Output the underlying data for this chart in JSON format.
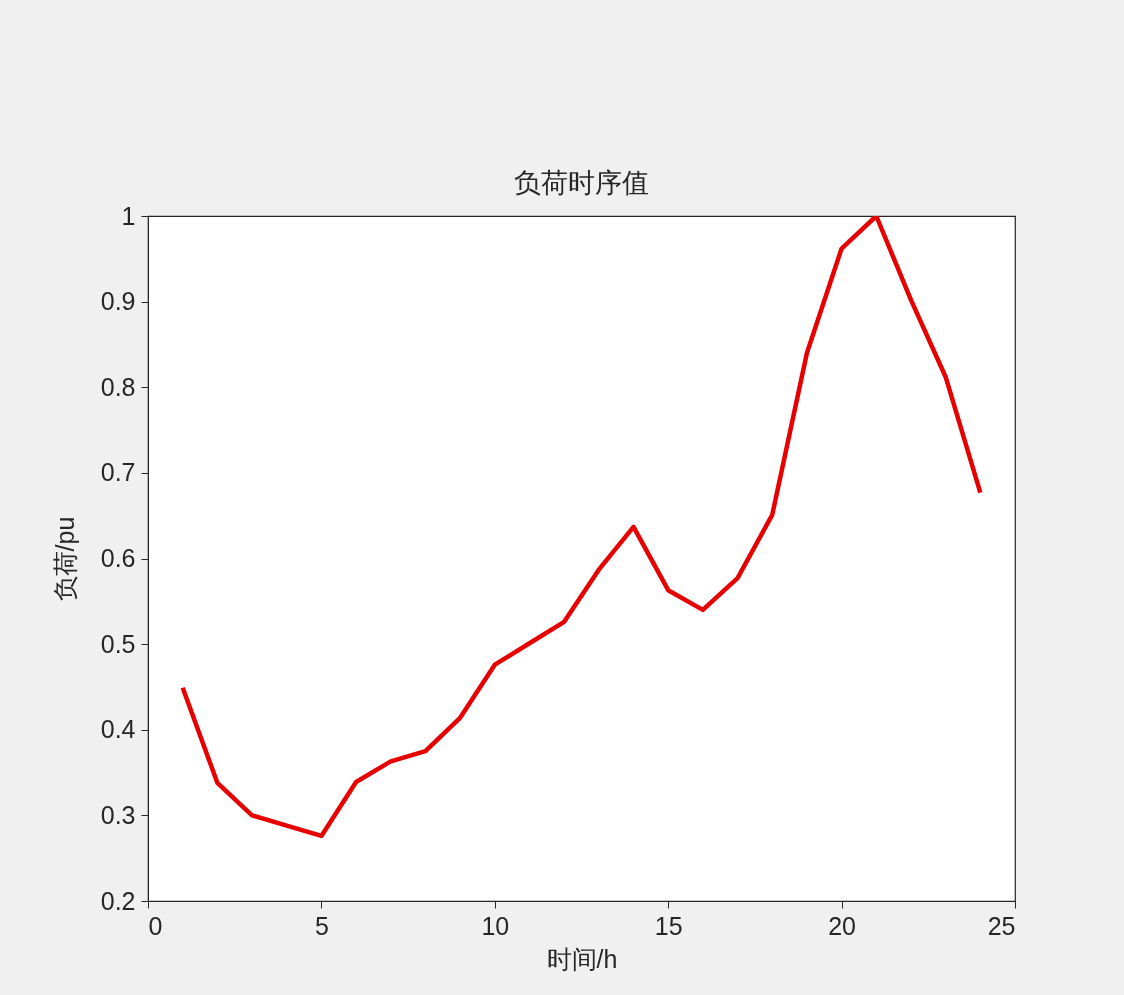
{
  "chart_data": {
    "type": "line",
    "title": "负荷时序值",
    "xlabel": "时间/h",
    "ylabel": "负荷/pu",
    "x": [
      1,
      2,
      3,
      4,
      5,
      6,
      7,
      8,
      9,
      10,
      11,
      12,
      13,
      14,
      15,
      16,
      17,
      18,
      19,
      20,
      21,
      22,
      23,
      24
    ],
    "series": [
      {
        "color": "#e60000",
        "values": [
          0.449,
          0.338,
          0.3,
          0.288,
          0.276,
          0.339,
          0.363,
          0.375,
          0.414,
          0.476,
          0.501,
          0.526,
          0.587,
          0.637,
          0.563,
          0.54,
          0.577,
          0.651,
          0.84,
          0.962,
          1.0,
          0.902,
          0.812,
          0.677
        ]
      }
    ],
    "xlim": [
      0,
      25
    ],
    "ylim": [
      0.2,
      1
    ],
    "xticks": [
      0,
      5,
      10,
      15,
      20,
      25
    ],
    "yticks": [
      0.2,
      0.3,
      0.4,
      0.5,
      0.6,
      0.7,
      0.8,
      0.9,
      1
    ],
    "grid": false,
    "marker": "none",
    "line_style": "solid"
  }
}
